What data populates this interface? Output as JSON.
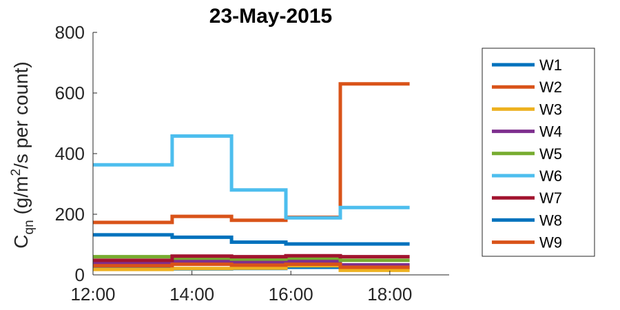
{
  "chart_data": {
    "type": "line",
    "title": "23-May-2015",
    "xlabel": "",
    "ylabel": {
      "main": "C",
      "subscript": "qn",
      "rest1": " (g/m",
      "superscript": "2",
      "rest2": "/s per count)"
    },
    "xlim": [
      12.0,
      19.2
    ],
    "ylim": [
      0,
      800
    ],
    "xticks": [
      12,
      14,
      16,
      18
    ],
    "xtick_labels": [
      "12:00",
      "14:00",
      "16:00",
      "18:00"
    ],
    "yticks": [
      0,
      200,
      400,
      600,
      800
    ],
    "ytick_labels": [
      "0",
      "200",
      "400",
      "600",
      "800"
    ],
    "grid": false,
    "legend_position": "right",
    "series": [
      {
        "name": "W1",
        "color": "#0072BD",
        "x": [
          12.0,
          13.6,
          13.6,
          14.8,
          14.8,
          15.9,
          15.9,
          17.0,
          17.0,
          18.4
        ],
        "y": [
          22,
          22,
          20,
          20,
          21,
          21,
          25,
          25,
          24,
          24
        ]
      },
      {
        "name": "W2",
        "color": "#D95319",
        "x": [
          12.0,
          13.6,
          13.6,
          14.8,
          14.8,
          15.9,
          15.9,
          17.0,
          17.0,
          18.4
        ],
        "y": [
          173,
          173,
          193,
          193,
          180,
          180,
          190,
          190,
          630,
          630
        ]
      },
      {
        "name": "W3",
        "color": "#EDB120",
        "x": [
          12.0,
          13.6,
          13.6,
          14.8,
          14.8,
          15.9,
          15.9,
          17.0,
          17.0,
          18.4
        ],
        "y": [
          18,
          18,
          21,
          21,
          22,
          22,
          30,
          30,
          15,
          15
        ]
      },
      {
        "name": "W4",
        "color": "#7E2F8E",
        "x": [
          12.0,
          13.6,
          13.6,
          14.8,
          14.8,
          15.9,
          15.9,
          17.0,
          17.0,
          18.4
        ],
        "y": [
          40,
          40,
          45,
          45,
          42,
          42,
          45,
          45,
          33,
          33
        ]
      },
      {
        "name": "W5",
        "color": "#77AC30",
        "x": [
          12.0,
          13.6,
          13.6,
          14.8,
          14.8,
          15.9,
          15.9,
          17.0,
          17.0,
          18.4
        ],
        "y": [
          60,
          60,
          55,
          55,
          52,
          52,
          55,
          55,
          48,
          48
        ]
      },
      {
        "name": "W6",
        "color": "#4DBEEE",
        "x": [
          12.0,
          13.6,
          13.6,
          14.8,
          14.8,
          15.9,
          15.9,
          17.0,
          17.0,
          18.4
        ],
        "y": [
          363,
          363,
          458,
          458,
          280,
          280,
          188,
          188,
          222,
          222
        ]
      },
      {
        "name": "W7",
        "color": "#A2142F",
        "x": [
          12.0,
          13.6,
          13.6,
          14.8,
          14.8,
          15.9,
          15.9,
          17.0,
          17.0,
          18.4
        ],
        "y": [
          48,
          48,
          62,
          62,
          60,
          60,
          63,
          63,
          60,
          60
        ]
      },
      {
        "name": "W8",
        "color": "#0072BD",
        "x": [
          12.0,
          13.6,
          13.6,
          14.8,
          14.8,
          15.9,
          15.9,
          17.0,
          17.0,
          18.4
        ],
        "y": [
          132,
          132,
          124,
          124,
          108,
          108,
          102,
          102,
          102,
          102
        ]
      },
      {
        "name": "W9",
        "color": "#D95319",
        "x": [
          12.0,
          13.6,
          13.6,
          14.8,
          14.8,
          15.9,
          15.9,
          17.0,
          17.0,
          18.4
        ],
        "y": [
          30,
          30,
          35,
          35,
          32,
          32,
          35,
          35,
          25,
          25
        ]
      }
    ]
  }
}
